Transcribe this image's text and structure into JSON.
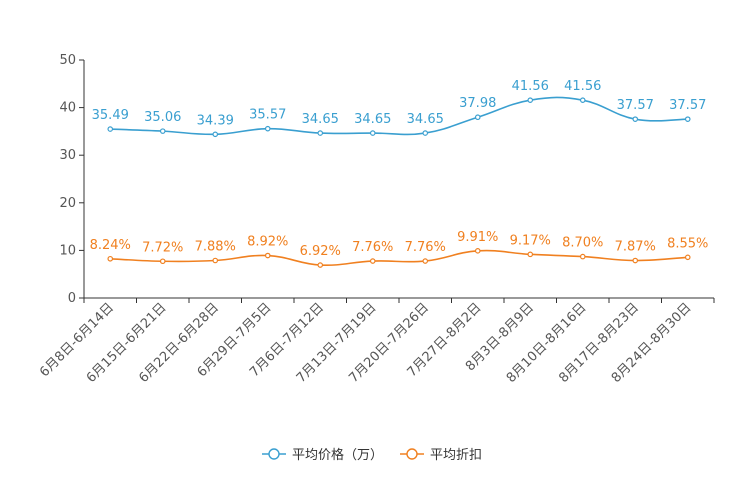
{
  "chart_data": {
    "type": "line",
    "categories": [
      "6月8日-6月14日",
      "6月15日-6月21日",
      "6月22日-6月28日",
      "6月29日-7月5日",
      "7月6日-7月12日",
      "7月13日-7月19日",
      "7月20日-7月26日",
      "7月27日-8月2日",
      "8月3日-8月9日",
      "8月10日-8月16日",
      "8月17日-8月23日",
      "8月24日-8月30日"
    ],
    "ylim": [
      0,
      50
    ],
    "yticks": [
      0,
      10,
      20,
      30,
      40,
      50
    ],
    "grid": false,
    "legend_position": "bottom-center",
    "series": [
      {
        "name": "平均价格（万）",
        "color": "#3a9fd0",
        "values": [
          35.49,
          35.06,
          34.39,
          35.57,
          34.65,
          34.65,
          34.65,
          37.98,
          41.56,
          41.56,
          37.57,
          37.57
        ],
        "labels": [
          "35.49",
          "35.06",
          "34.39",
          "35.57",
          "34.65",
          "34.65",
          "34.65",
          "37.98",
          "41.56",
          "41.56",
          "37.57",
          "37.57"
        ]
      },
      {
        "name": "平均折扣",
        "color": "#f08020",
        "values": [
          8.24,
          7.72,
          7.88,
          8.92,
          6.92,
          7.76,
          7.76,
          9.91,
          9.17,
          8.7,
          7.87,
          8.55
        ],
        "labels": [
          "8.24%",
          "7.72%",
          "7.88%",
          "8.92%",
          "6.92%",
          "7.76%",
          "7.76%",
          "9.91%",
          "9.17%",
          "8.70%",
          "7.87%",
          "8.55%"
        ]
      }
    ]
  }
}
